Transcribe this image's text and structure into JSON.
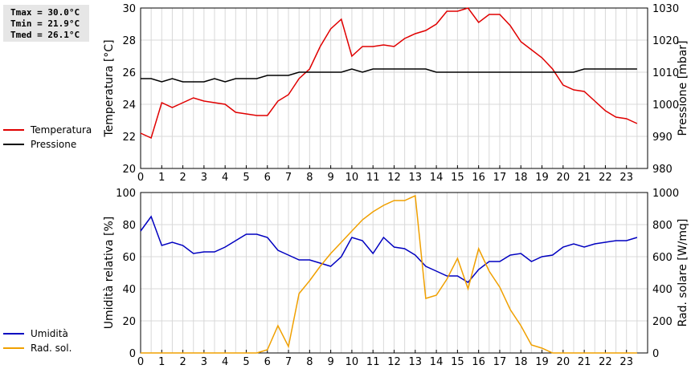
{
  "stats": {
    "tmax": "Tmax = 30.0°C",
    "tmin": "Tmin = 21.9°C",
    "tmed": "Tmed = 26.1°C"
  },
  "colors": {
    "temperature": "#e00000",
    "pressure": "#000000",
    "humidity": "#0000c0",
    "solar": "#f0a000",
    "grid": "#d8d8d8"
  },
  "legend_top": [
    {
      "label": "Temperatura",
      "color": "#e00000"
    },
    {
      "label": "Pressione",
      "color": "#000000"
    }
  ],
  "legend_bottom": [
    {
      "label": "Umidità",
      "color": "#0000c0"
    },
    {
      "label": "Rad. sol.",
      "color": "#f0a000"
    }
  ],
  "chart_data": [
    {
      "type": "line",
      "ylabel": "Temperatura [°C]",
      "y2label": "Pressione [mbar]",
      "xlim": [
        0,
        24
      ],
      "ylim": [
        20,
        30
      ],
      "y2lim": [
        980,
        1030
      ],
      "x_ticks": [
        0,
        1,
        2,
        3,
        4,
        5,
        6,
        7,
        8,
        9,
        10,
        11,
        12,
        13,
        14,
        15,
        16,
        17,
        18,
        19,
        20,
        21,
        22,
        23
      ],
      "y_ticks": [
        20,
        22,
        24,
        26,
        28,
        30
      ],
      "y2_ticks": [
        980,
        990,
        1000,
        1010,
        1020,
        1030
      ],
      "grid": true,
      "series": [
        {
          "name": "Temperatura",
          "axis": "left",
          "color": "#e00000",
          "x": [
            0,
            0.5,
            1,
            1.5,
            2,
            2.5,
            3,
            3.5,
            4,
            4.5,
            5,
            5.5,
            6,
            6.5,
            7,
            7.5,
            8,
            8.5,
            9,
            9.5,
            10,
            10.5,
            11,
            11.5,
            12,
            12.5,
            13,
            13.5,
            14,
            14.5,
            15,
            15.5,
            16,
            16.5,
            17,
            17.5,
            18,
            18.5,
            19,
            19.5,
            20,
            20.5,
            21,
            21.5,
            22,
            22.5,
            23,
            23.5
          ],
          "values": [
            22.2,
            21.9,
            24.1,
            23.8,
            24.1,
            24.4,
            24.2,
            24.1,
            24.0,
            23.5,
            23.4,
            23.3,
            23.3,
            24.2,
            24.6,
            25.6,
            26.2,
            27.6,
            28.7,
            29.3,
            27.0,
            27.6,
            27.6,
            27.7,
            27.6,
            28.1,
            28.4,
            28.6,
            29.0,
            29.8,
            29.8,
            30.0,
            29.1,
            29.6,
            29.6,
            28.9,
            27.9,
            27.4,
            26.9,
            26.2,
            25.2,
            24.9,
            24.8,
            24.2,
            23.6,
            23.2,
            23.1,
            22.8
          ]
        },
        {
          "name": "Pressione",
          "axis": "right",
          "color": "#000000",
          "x": [
            0,
            0.5,
            1,
            1.5,
            2,
            2.5,
            3,
            3.5,
            4,
            4.5,
            5,
            5.5,
            6,
            6.5,
            7,
            7.5,
            8,
            8.5,
            9,
            9.5,
            10,
            10.5,
            11,
            11.5,
            12,
            12.5,
            13,
            13.5,
            14,
            14.5,
            15,
            15.5,
            16,
            16.5,
            17,
            17.5,
            18,
            18.5,
            19,
            19.5,
            20,
            20.5,
            21,
            21.5,
            22,
            22.5,
            23,
            23.5
          ],
          "values": [
            1008,
            1008,
            1007,
            1008,
            1007,
            1007,
            1007,
            1008,
            1007,
            1008,
            1008,
            1008,
            1009,
            1009,
            1009,
            1010,
            1010,
            1010,
            1010,
            1010,
            1011,
            1010,
            1011,
            1011,
            1011,
            1011,
            1011,
            1011,
            1010,
            1010,
            1010,
            1010,
            1010,
            1010,
            1010,
            1010,
            1010,
            1010,
            1010,
            1010,
            1010,
            1010,
            1011,
            1011,
            1011,
            1011,
            1011,
            1011
          ]
        }
      ]
    },
    {
      "type": "line",
      "ylabel": "Umidità relativa [%]",
      "y2label": "Rad. solare [W/mq]",
      "xlim": [
        0,
        24
      ],
      "ylim": [
        0,
        100
      ],
      "y2lim": [
        0,
        1000
      ],
      "x_ticks": [
        0,
        1,
        2,
        3,
        4,
        5,
        6,
        7,
        8,
        9,
        10,
        11,
        12,
        13,
        14,
        15,
        16,
        17,
        18,
        19,
        20,
        21,
        22,
        23
      ],
      "y_ticks": [
        0,
        20,
        40,
        60,
        80,
        100
      ],
      "y2_ticks": [
        0,
        200,
        400,
        600,
        800,
        1000
      ],
      "grid": true,
      "series": [
        {
          "name": "Umidità",
          "axis": "left",
          "color": "#0000c0",
          "x": [
            0,
            0.5,
            1,
            1.5,
            2,
            2.5,
            3,
            3.5,
            4,
            4.5,
            5,
            5.5,
            6,
            6.5,
            7,
            7.5,
            8,
            8.5,
            9,
            9.5,
            10,
            10.5,
            11,
            11.5,
            12,
            12.5,
            13,
            13.5,
            14,
            14.5,
            15,
            15.5,
            16,
            16.5,
            17,
            17.5,
            18,
            18.5,
            19,
            19.5,
            20,
            20.5,
            21,
            21.5,
            22,
            22.5,
            23,
            23.5
          ],
          "values": [
            76,
            85,
            67,
            69,
            67,
            62,
            63,
            63,
            66,
            70,
            74,
            74,
            72,
            64,
            61,
            58,
            58,
            56,
            54,
            60,
            72,
            70,
            62,
            72,
            66,
            65,
            61,
            54,
            51,
            48,
            48,
            44,
            52,
            57,
            57,
            61,
            62,
            57,
            60,
            61,
            66,
            68,
            66,
            68,
            69,
            70,
            70,
            72
          ]
        },
        {
          "name": "Rad. sol.",
          "axis": "right",
          "color": "#f0a000",
          "x": [
            0,
            0.5,
            1,
            1.5,
            2,
            2.5,
            3,
            3.5,
            4,
            4.5,
            5,
            5.5,
            6,
            6.5,
            7,
            7.5,
            8,
            8.5,
            9,
            9.5,
            10,
            10.5,
            11,
            11.5,
            12,
            12.5,
            13,
            13.5,
            14,
            14.5,
            15,
            15.5,
            16,
            16.5,
            17,
            17.5,
            18,
            18.5,
            19,
            19.5,
            20,
            20.5,
            21,
            21.5,
            22,
            22.5,
            23,
            23.5
          ],
          "values": [
            0,
            0,
            0,
            0,
            0,
            0,
            0,
            0,
            0,
            0,
            0,
            0,
            20,
            170,
            40,
            370,
            450,
            540,
            620,
            690,
            760,
            830,
            880,
            920,
            950,
            950,
            980,
            340,
            360,
            460,
            590,
            400,
            650,
            510,
            410,
            270,
            170,
            50,
            30,
            0,
            0,
            0,
            0,
            0,
            0,
            0,
            0,
            0
          ]
        }
      ]
    }
  ]
}
